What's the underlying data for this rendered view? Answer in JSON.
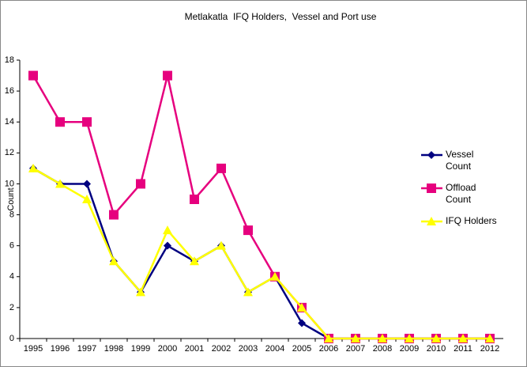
{
  "chart_data": {
    "type": "line",
    "title": "Metlakatla  IFQ Holders,  Vessel and Port use",
    "y_label": "Count",
    "categories": [
      "1995",
      "1996",
      "1997",
      "1998",
      "1999",
      "2000",
      "2001",
      "2002",
      "2003",
      "2004",
      "2005",
      "2006",
      "2007",
      "2008",
      "2009",
      "2010",
      "2011",
      "2012"
    ],
    "series": [
      {
        "name": "Vessel Count",
        "color": "#000080",
        "marker": "diamond",
        "values": [
          11,
          10,
          10,
          5,
          3,
          6,
          5,
          6,
          3,
          4,
          1,
          0,
          0,
          0,
          0,
          0,
          0,
          0
        ]
      },
      {
        "name": "Offload Count",
        "color": "#e6007e",
        "marker": "square",
        "values": [
          17,
          14,
          14,
          8,
          10,
          17,
          9,
          11,
          7,
          4,
          2,
          0,
          0,
          0,
          0,
          0,
          0,
          0
        ]
      },
      {
        "name": "IFQ Holders",
        "color": "#ffff00",
        "marker": "triangle",
        "values": [
          11,
          10,
          9,
          5,
          3,
          7,
          5,
          6,
          3,
          4,
          2,
          0,
          0,
          0,
          0,
          0,
          0,
          0
        ]
      }
    ],
    "ylim": [
      0,
      18
    ],
    "yticks": [
      0,
      2,
      4,
      6,
      8,
      10,
      12,
      14,
      16,
      18
    ],
    "grid": false,
    "legend": "right"
  }
}
